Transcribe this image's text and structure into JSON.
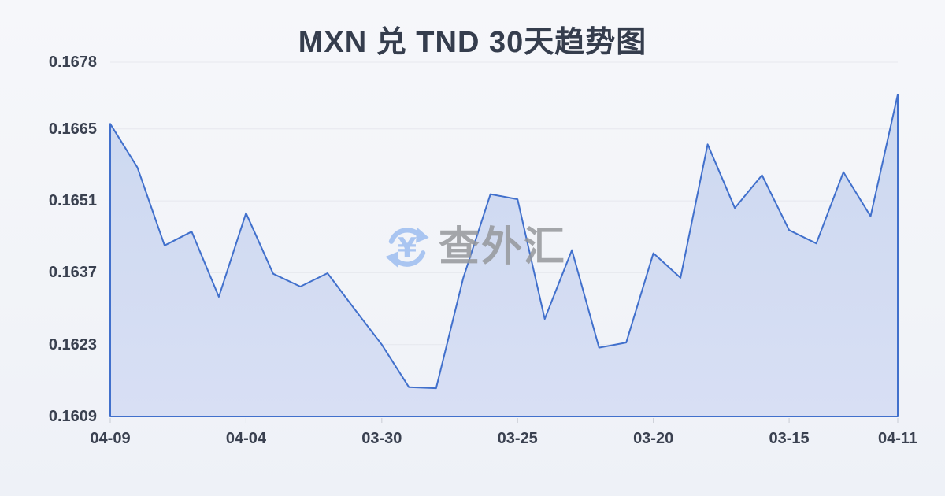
{
  "title": "MXN 兑 TND 30天趋势图",
  "watermark": {
    "text": "查外汇",
    "icon": "currency-yen-sync-icon"
  },
  "colors": {
    "line": "#4170cc",
    "fill_top": "#ccd8f0",
    "fill_bottom": "#d8dff4",
    "grid": "#e6e8ee",
    "tick": "#c9ccd4",
    "label_text": "#3a4150",
    "title_text": "#353d4d",
    "watermark_blue": "#a9c5f1",
    "watermark_gray": "#96989c"
  },
  "chart_data": {
    "type": "area",
    "title": "MXN 兑 TND 30天趋势图",
    "xlabel": "",
    "ylabel": "",
    "grid": true,
    "legend_position": "none",
    "ylim": [
      0.1609,
      0.1678
    ],
    "y_ticks": [
      0.1678,
      0.1665,
      0.1651,
      0.1637,
      0.1623,
      0.1609
    ],
    "x_ticks": [
      {
        "index": 0,
        "label": "04-09"
      },
      {
        "index": 5,
        "label": "04-04"
      },
      {
        "index": 10,
        "label": "03-30"
      },
      {
        "index": 15,
        "label": "03-25"
      },
      {
        "index": 20,
        "label": "03-20"
      },
      {
        "index": 25,
        "label": "03-15"
      },
      {
        "index": 29,
        "label": "04-11"
      }
    ],
    "values": [
      0.1666,
      0.16575,
      0.16423,
      0.1645,
      0.16323,
      0.16486,
      0.16368,
      0.16343,
      0.16369,
      0.16299,
      0.1623,
      0.16147,
      0.16145,
      0.1636,
      0.16523,
      0.16513,
      0.1628,
      0.16414,
      0.16224,
      0.16234,
      0.16408,
      0.1636,
      0.1662,
      0.16496,
      0.1656,
      0.16453,
      0.16427,
      0.16566,
      0.1648,
      0.16717
    ]
  }
}
